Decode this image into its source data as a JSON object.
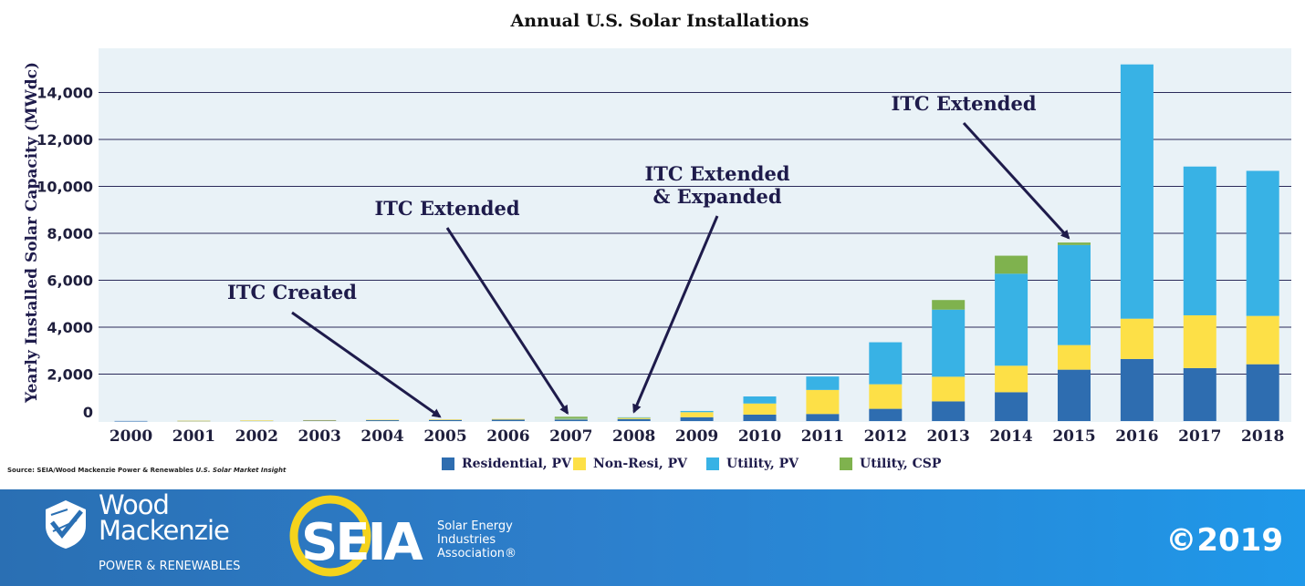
{
  "chart_data": {
    "type": "bar",
    "stacked": true,
    "title": "Annual U.S. Solar Installations",
    "ylabel": "Yearly Installed Solar Capacity (MWdc)",
    "xlabel": "",
    "ylim": [
      0,
      15500
    ],
    "yticks": [
      0,
      2000,
      4000,
      6000,
      8000,
      10000,
      12000,
      14000
    ],
    "ytick_labels": [
      "0",
      "2,000",
      "4,000",
      "6,000",
      "8,000",
      "10,000",
      "12,000",
      "14,000"
    ],
    "grid": true,
    "legend_position": "bottom",
    "categories": [
      "2000",
      "2001",
      "2002",
      "2003",
      "2004",
      "2005",
      "2006",
      "2007",
      "2008",
      "2009",
      "2010",
      "2011",
      "2012",
      "2013",
      "2014",
      "2015",
      "2016",
      "2017",
      "2018"
    ],
    "series": [
      {
        "name": "Residential, PV",
        "color": "#2e6db0",
        "values": [
          4,
          11,
          20,
          32,
          43,
          49,
          61,
          68,
          86,
          164,
          275,
          301,
          521,
          838,
          1228,
          2189,
          2644,
          2257,
          2420
        ]
      },
      {
        "name": "Non-Resi, PV",
        "color": "#fde047",
        "values": [
          0,
          2,
          5,
          10,
          15,
          22,
          30,
          38,
          63,
          214,
          473,
          1025,
          1047,
          1051,
          1130,
          1049,
          1718,
          2249,
          2060
        ]
      },
      {
        "name": "Utility, PV",
        "color": "#38b2e5",
        "values": [
          0,
          0,
          0,
          0,
          0,
          0,
          0,
          14,
          11,
          51,
          300,
          571,
          1789,
          2858,
          3921,
          4264,
          10835,
          6339,
          6181
        ]
      },
      {
        "name": "Utility, CSP",
        "color": "#7fb24e",
        "values": [
          0,
          0,
          0,
          0,
          0,
          0,
          0,
          64,
          0,
          0,
          0,
          0,
          0,
          410,
          767,
          105,
          0,
          0,
          0
        ]
      }
    ],
    "annotations": [
      {
        "lines": [
          "ITC Created"
        ],
        "category": "2005"
      },
      {
        "lines": [
          "ITC Extended"
        ],
        "category": "2007"
      },
      {
        "lines": [
          "ITC Extended",
          "& Expanded"
        ],
        "category": "2008"
      },
      {
        "lines": [
          "ITC Extended"
        ],
        "category": "2015"
      }
    ]
  },
  "source": {
    "prefix": "Source: SEIA/Wood Mackenzie Power & Renewables ",
    "publication": "U.S. Solar Market Insight"
  },
  "footer": {
    "wm_name_line1": "Wood",
    "wm_name_line2": "Mackenzie",
    "wm_sub": "POWER & RENEWABLES",
    "seia_letters": "SEIA",
    "seia_sub_line1": "Solar Energy",
    "seia_sub_line2": "Industries",
    "seia_sub_line3": "Association®",
    "copyright": "©2019",
    "colors": {
      "background": "#2a6fb3",
      "accent_ring": "#f5d31c"
    }
  }
}
